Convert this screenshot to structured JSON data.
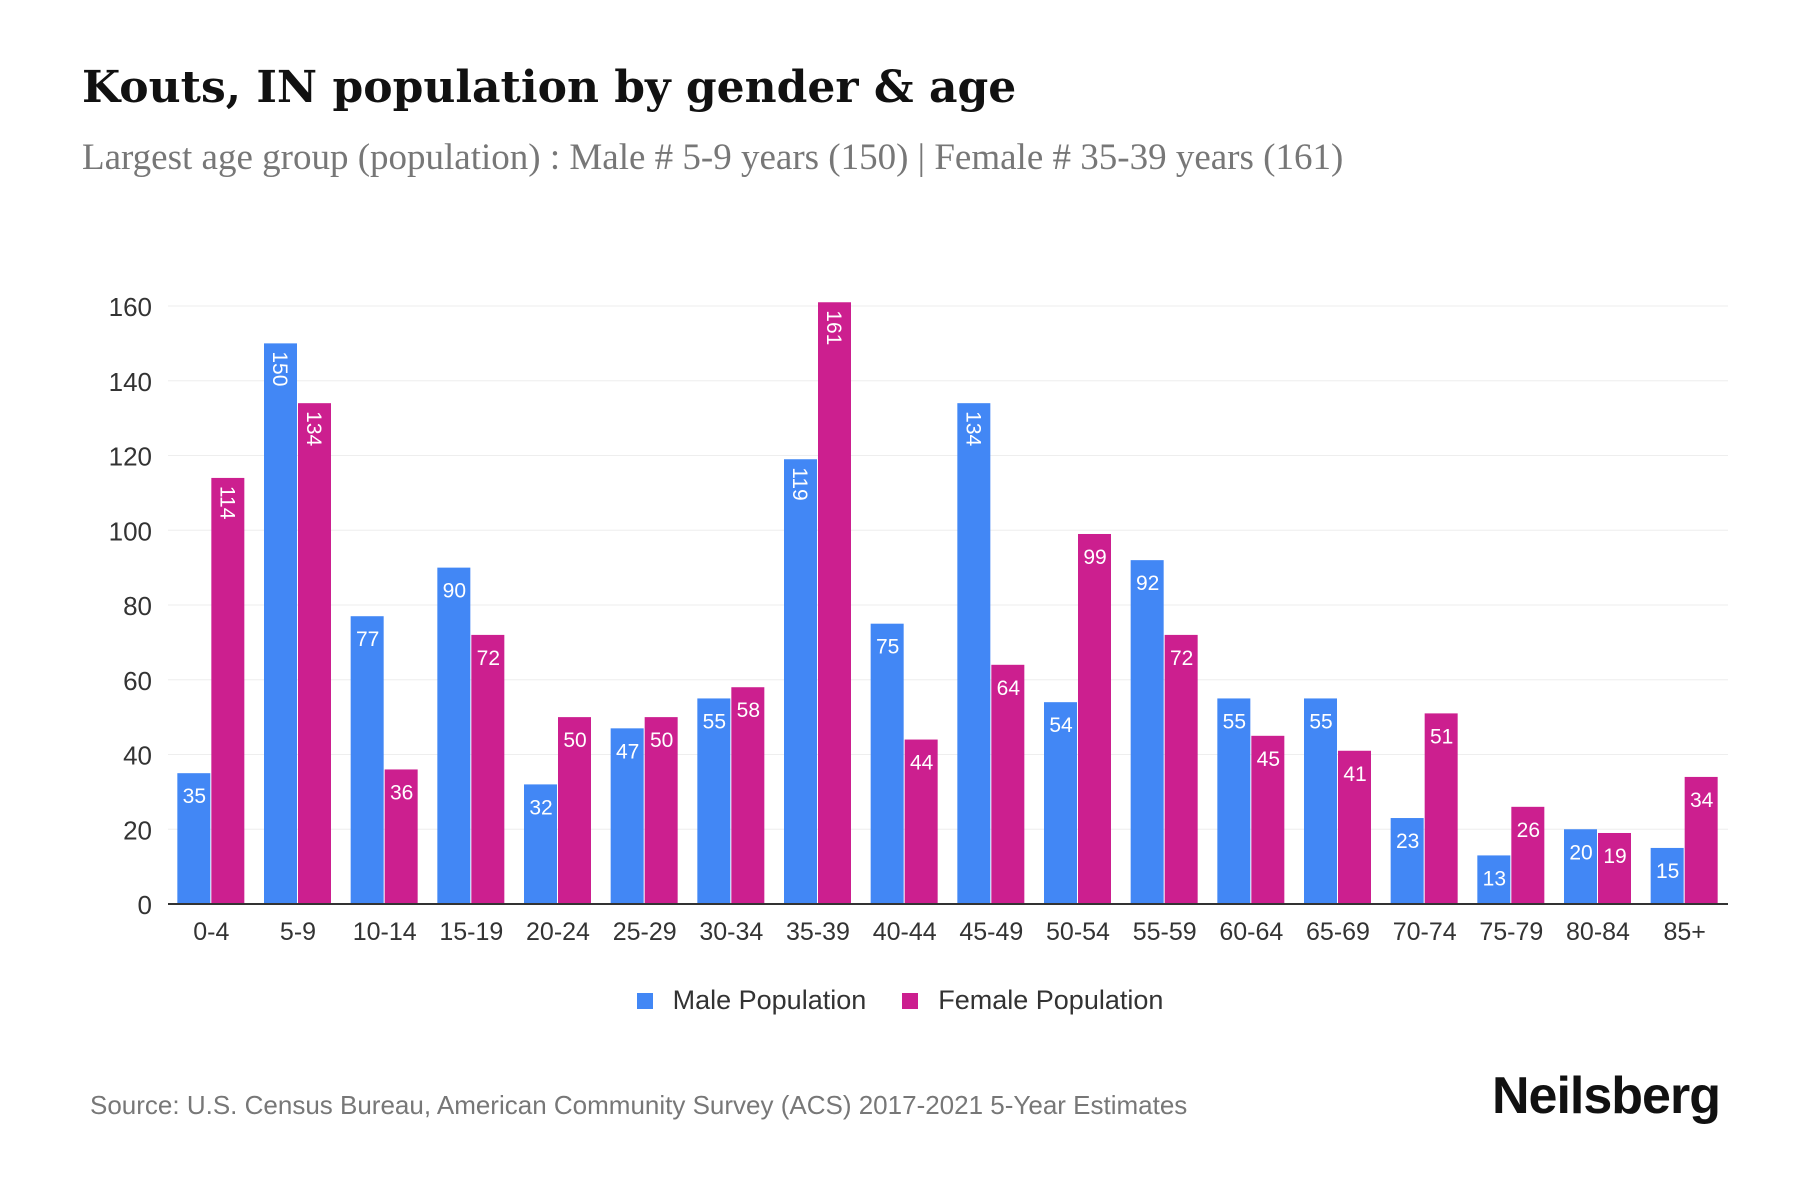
{
  "title": "Kouts, IN population by gender & age",
  "subtitle": "Largest age group (population) : Male # 5-9 years (150) | Female # 35-39 years (161)",
  "source": "Source: U.S. Census Bureau, American Community Survey (ACS) 2017-2021 5-Year Estimates",
  "logo": "Neilsberg",
  "chart_data": {
    "type": "bar",
    "categories": [
      "0-4",
      "5-9",
      "10-14",
      "15-19",
      "20-24",
      "25-29",
      "30-34",
      "35-39",
      "40-44",
      "45-49",
      "50-54",
      "55-59",
      "60-64",
      "65-69",
      "70-74",
      "75-79",
      "80-84",
      "85+"
    ],
    "series": [
      {
        "name": "Male Population",
        "color": "#4287f5",
        "values": [
          35,
          150,
          77,
          90,
          32,
          47,
          55,
          119,
          75,
          134,
          54,
          92,
          55,
          55,
          23,
          13,
          20,
          15
        ]
      },
      {
        "name": "Female Population",
        "color": "#cc1f8f",
        "values": [
          114,
          134,
          36,
          72,
          50,
          50,
          58,
          161,
          44,
          64,
          99,
          72,
          45,
          41,
          51,
          26,
          19,
          34
        ]
      }
    ],
    "ylim": [
      0,
      160
    ],
    "yticks": [
      0,
      20,
      40,
      60,
      80,
      100,
      120,
      140,
      160
    ],
    "grid": true,
    "legend": "bottom"
  }
}
